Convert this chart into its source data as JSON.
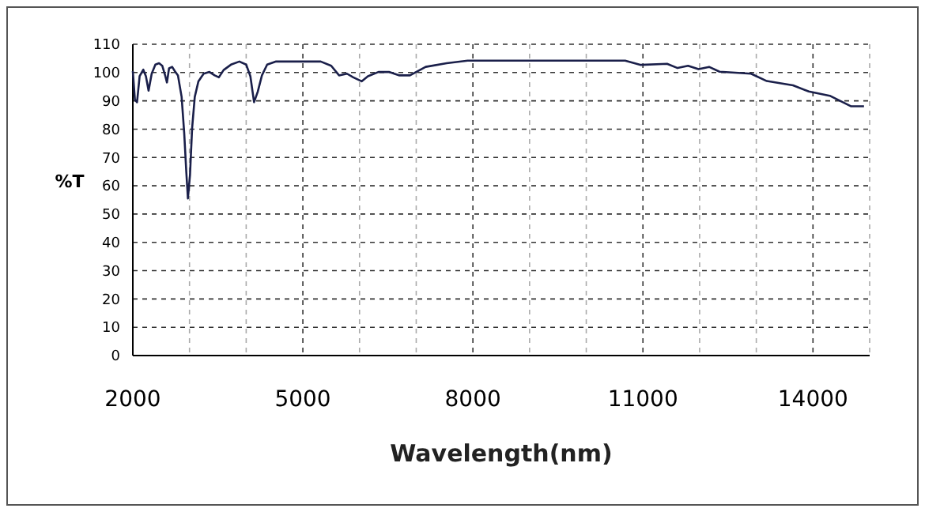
{
  "chart_data": {
    "type": "line",
    "xlabel": "Wavelength(nm)",
    "ylabel": "%T",
    "xlim": [
      2000,
      15000
    ],
    "xticks": [
      2000,
      {
        "value": 3000,
        "label": null
      },
      {
        "value": 4000,
        "label": null
      },
      5000,
      {
        "value": 6000,
        "label": null
      },
      {
        "value": 7000,
        "label": null
      },
      8000,
      {
        "value": 9000,
        "label": null
      },
      {
        "value": 10000,
        "label": null
      },
      11000,
      {
        "value": 12000,
        "label": null
      },
      {
        "value": 13000,
        "label": null
      },
      14000,
      {
        "value": 15000,
        "label": null
      }
    ],
    "ylim": [
      0,
      110
    ],
    "yticks": [
      0,
      10,
      20,
      30,
      40,
      50,
      60,
      70,
      80,
      90,
      100,
      110
    ],
    "grid": true,
    "marker": "none",
    "line_style": "solid",
    "series": [
      {
        "color": "#1a1f4a",
        "x": [
          2000,
          2037,
          2074,
          2120,
          2185,
          2231,
          2278,
          2333,
          2398,
          2463,
          2519,
          2574,
          2602,
          2639,
          2694,
          2741,
          2796,
          2861,
          2907,
          2944,
          2972,
          3009,
          3046,
          3093,
          3157,
          3250,
          3352,
          3444,
          3518,
          3602,
          3741,
          3880,
          4000,
          4074,
          4139,
          4204,
          4278,
          4370,
          4528,
          5315,
          5500,
          5639,
          5778,
          5889,
          6037,
          6148,
          6333,
          6519,
          6704,
          6889,
          7167,
          7537,
          7907,
          10686,
          10964,
          11426,
          11611,
          11796,
          11981,
          12167,
          12352,
          12907,
          13185,
          13648,
          13926,
          14296,
          14667,
          14900
        ],
        "values": [
          100.5,
          90.4,
          89.5,
          98.7,
          101,
          98.7,
          93.6,
          99.6,
          102.8,
          103.3,
          102.4,
          98.7,
          96.5,
          101.5,
          102,
          100.5,
          99,
          91.4,
          78.5,
          64.7,
          55.5,
          63.8,
          80.3,
          91.4,
          96.9,
          99.6,
          100.2,
          99,
          98.3,
          100.9,
          102.9,
          103.9,
          102.8,
          98.7,
          89.5,
          93.2,
          99,
          102.8,
          103.9,
          103.9,
          102.4,
          99,
          99.6,
          98.3,
          96.9,
          98.7,
          100.2,
          100.2,
          99,
          99,
          102,
          103.3,
          104.2,
          104.2,
          102.7,
          103.1,
          101.6,
          102.4,
          101.2,
          102,
          100.3,
          99.6,
          97,
          95.5,
          93.3,
          91.8,
          88.1,
          88.1
        ]
      }
    ]
  }
}
